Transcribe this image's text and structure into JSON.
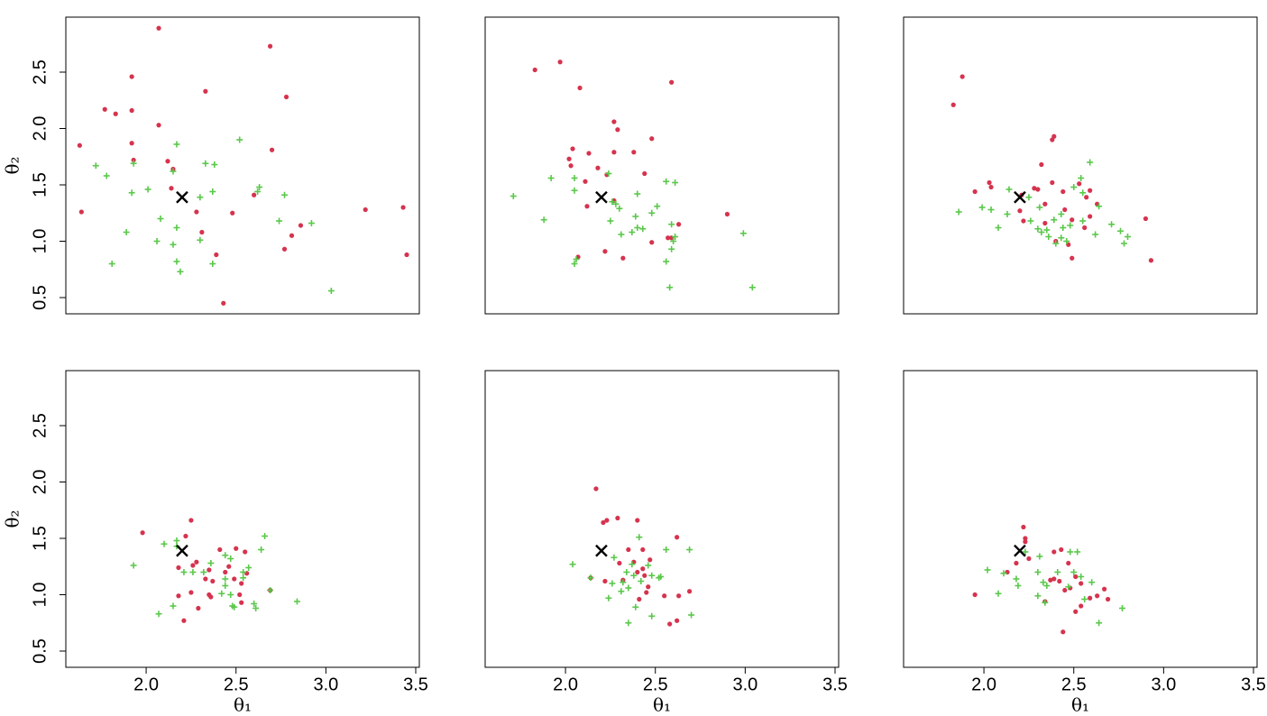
{
  "chart_data": [
    {
      "type": "scatter",
      "xlim": [
        1.553,
        3.52
      ],
      "ylim": [
        0.356,
        2.988
      ],
      "yticks": [
        0.5,
        {
          "value": 1,
          "label": "1.0"
        },
        1.5,
        {
          "value": 2,
          "label": "2.0"
        },
        2.5
      ],
      "ylabel": "θ₂",
      "reference": {
        "x": 2.2,
        "y": 1.39,
        "color": "#000000"
      },
      "series": [
        {
          "marker": "dot",
          "color": "#d6334e",
          "x": [
            2.07,
            2.69,
            1.92,
            2.33,
            2.78,
            1.77,
            1.92,
            1.83,
            2.07,
            1.63,
            1.92,
            2.7,
            1.93,
            2.12,
            2.15,
            2.14,
            2.6,
            1.64,
            2.28,
            2.48,
            3.22,
            3.43,
            2.81,
            2.86,
            2.31,
            2.39,
            2.77,
            3.45,
            2.43
          ],
          "values": [
            2.89,
            2.73,
            2.46,
            2.33,
            2.28,
            2.17,
            2.16,
            2.13,
            2.03,
            1.85,
            1.87,
            1.81,
            1.72,
            1.71,
            1.64,
            1.47,
            1.41,
            1.26,
            1.26,
            1.25,
            1.28,
            1.3,
            1.05,
            1.14,
            1.08,
            0.88,
            0.93,
            0.88,
            0.45
          ]
        },
        {
          "marker": "plus",
          "color": "#5ac84a",
          "x": [
            2.52,
            2.17,
            1.72,
            1.78,
            1.93,
            2.33,
            2.38,
            2.15,
            2.01,
            1.92,
            2.63,
            2.62,
            2.37,
            2.77,
            2.3,
            2.08,
            2.74,
            2.92,
            2.17,
            1.89,
            2.3,
            2.06,
            2.15,
            1.81,
            2.17,
            2.37,
            2.19,
            3.03
          ],
          "values": [
            1.9,
            1.86,
            1.67,
            1.58,
            1.69,
            1.69,
            1.68,
            1.62,
            1.46,
            1.43,
            1.48,
            1.44,
            1.44,
            1.41,
            1.39,
            1.2,
            1.18,
            1.16,
            1.12,
            1.08,
            1.01,
            1.0,
            0.97,
            0.8,
            0.82,
            0.8,
            0.73,
            0.56
          ]
        }
      ]
    },
    {
      "type": "scatter",
      "xlim": [
        1.553,
        3.52
      ],
      "ylim": [
        0.356,
        2.988
      ],
      "reference": {
        "x": 2.2,
        "y": 1.39,
        "color": "#000000"
      },
      "series": [
        {
          "marker": "dot",
          "color": "#d6334e",
          "x": [
            1.83,
            1.97,
            2.08,
            2.59,
            2.27,
            2.29,
            2.48,
            2.04,
            2.13,
            2.27,
            2.38,
            2.02,
            2.03,
            2.18,
            2.23,
            2.44,
            2.11,
            2.12,
            2.27,
            2.9,
            2.63,
            2.57,
            2.48,
            2.22,
            2.32,
            2.07,
            2.59
          ],
          "values": [
            2.52,
            2.59,
            2.36,
            2.41,
            2.06,
            1.99,
            1.91,
            1.82,
            1.78,
            1.79,
            1.79,
            1.73,
            1.67,
            1.65,
            1.59,
            1.6,
            1.53,
            1.31,
            1.36,
            1.24,
            1.15,
            1.03,
            0.99,
            0.91,
            0.85,
            0.86,
            1.03
          ]
        },
        {
          "marker": "plus",
          "color": "#5ac84a",
          "x": [
            1.71,
            1.92,
            1.88,
            2.05,
            2.05,
            2.24,
            2.26,
            2.28,
            2.4,
            2.56,
            2.61,
            2.51,
            2.3,
            2.25,
            2.39,
            2.48,
            2.4,
            2.43,
            2.31,
            2.37,
            2.59,
            2.61,
            2.6,
            2.59,
            2.56,
            2.06,
            2.58,
            3.04,
            2.99,
            2.05
          ],
          "values": [
            1.4,
            1.56,
            1.19,
            1.56,
            1.45,
            1.6,
            1.35,
            1.33,
            1.42,
            1.53,
            1.52,
            1.31,
            1.29,
            1.18,
            1.22,
            1.25,
            1.12,
            1.11,
            1.06,
            1.08,
            1.15,
            1.04,
            1.0,
            0.93,
            0.82,
            0.84,
            0.59,
            0.59,
            1.07,
            0.8
          ]
        }
      ]
    },
    {
      "type": "scatter",
      "xlim": [
        1.553,
        3.52
      ],
      "ylim": [
        0.356,
        2.988
      ],
      "reference": {
        "x": 2.2,
        "y": 1.39,
        "color": "#000000"
      },
      "series": [
        {
          "marker": "dot",
          "color": "#d6334e",
          "x": [
            1.83,
            1.88,
            2.39,
            2.38,
            2.32,
            2.38,
            1.95,
            2.03,
            2.04,
            2.28,
            2.3,
            2.21,
            2.53,
            2.59,
            2.44,
            2.57,
            2.63,
            2.2,
            2.34,
            2.45,
            2.22,
            2.34,
            2.49,
            2.56,
            2.59,
            2.4,
            2.47,
            2.49,
            2.9,
            2.93
          ],
          "values": [
            2.21,
            2.46,
            1.93,
            1.9,
            1.68,
            1.52,
            1.44,
            1.52,
            1.48,
            1.47,
            1.46,
            1.41,
            1.51,
            1.45,
            1.44,
            1.39,
            1.33,
            1.27,
            1.33,
            1.28,
            1.18,
            1.16,
            1.19,
            1.12,
            1.22,
            1.0,
            0.97,
            0.85,
            1.2,
            0.83
          ]
        },
        {
          "marker": "plus",
          "color": "#5ac84a",
          "x": [
            2.59,
            2.54,
            2.5,
            2.55,
            1.99,
            1.86,
            2.04,
            2.14,
            2.25,
            2.13,
            2.08,
            2.31,
            2.26,
            2.39,
            2.43,
            2.48,
            2.55,
            2.44,
            2.35,
            2.32,
            2.3,
            2.36,
            2.43,
            2.4,
            2.46,
            2.62,
            2.71,
            2.76,
            2.8,
            2.78,
            2.64
          ],
          "values": [
            1.7,
            1.56,
            1.48,
            1.43,
            1.3,
            1.26,
            1.28,
            1.46,
            1.39,
            1.24,
            1.12,
            1.3,
            1.18,
            1.19,
            1.24,
            1.14,
            1.18,
            1.12,
            1.1,
            1.08,
            1.11,
            1.04,
            1.03,
            0.98,
            1.0,
            1.06,
            1.15,
            1.09,
            1.04,
            0.98,
            1.31
          ]
        }
      ]
    },
    {
      "type": "scatter",
      "xlim": [
        1.553,
        3.52
      ],
      "ylim": [
        0.356,
        2.988
      ],
      "xticks": [
        {
          "value": 2,
          "label": "2.0"
        },
        2.5,
        {
          "value": 3,
          "label": "3.0"
        },
        3.5
      ],
      "xlabel": "θ₁",
      "yticks": [
        0.5,
        {
          "value": 1,
          "label": "1.0"
        },
        1.5,
        {
          "value": 2,
          "label": "2.0"
        },
        2.5
      ],
      "ylabel": "θ₂",
      "reference": {
        "x": 2.2,
        "y": 1.39,
        "color": "#000000"
      },
      "series": [
        {
          "marker": "dot",
          "color": "#d6334e",
          "x": [
            1.98,
            2.25,
            2.22,
            2.28,
            2.26,
            2.18,
            2.41,
            2.5,
            2.55,
            2.35,
            2.46,
            2.44,
            2.33,
            2.37,
            2.49,
            2.56,
            2.53,
            2.18,
            2.25,
            2.35,
            2.36,
            2.52,
            2.53,
            2.29,
            2.69,
            2.21
          ],
          "values": [
            1.55,
            1.66,
            1.52,
            1.29,
            1.26,
            1.24,
            1.4,
            1.41,
            1.38,
            1.22,
            1.25,
            1.2,
            1.14,
            1.12,
            1.14,
            1.19,
            1.1,
            0.99,
            1.02,
            1.0,
            0.98,
            1.0,
            0.93,
            0.88,
            1.04,
            0.77
          ]
        },
        {
          "marker": "plus",
          "color": "#5ac84a",
          "x": [
            1.93,
            2.1,
            2.17,
            2.17,
            2.66,
            2.64,
            2.44,
            2.47,
            2.36,
            2.21,
            2.26,
            2.32,
            2.44,
            2.57,
            2.54,
            2.54,
            2.44,
            2.42,
            2.47,
            2.48,
            2.49,
            2.6,
            2.61,
            2.15,
            2.07,
            2.84,
            2.69
          ],
          "values": [
            1.26,
            1.45,
            1.48,
            1.43,
            1.52,
            1.4,
            1.35,
            1.32,
            1.28,
            1.2,
            1.2,
            1.2,
            1.14,
            1.24,
            1.2,
            1.15,
            1.08,
            1.01,
            1.0,
            0.9,
            0.89,
            0.92,
            0.88,
            0.9,
            0.83,
            0.94,
            1.04
          ]
        }
      ]
    },
    {
      "type": "scatter",
      "xlim": [
        1.553,
        3.52
      ],
      "ylim": [
        0.356,
        2.988
      ],
      "xticks": [
        {
          "value": 2,
          "label": "2.0"
        },
        2.5,
        {
          "value": 3,
          "label": "3.0"
        },
        3.5
      ],
      "xlabel": "θ₁",
      "reference": {
        "x": 2.2,
        "y": 1.39,
        "color": "#000000"
      },
      "series": [
        {
          "marker": "dot",
          "color": "#d6334e",
          "x": [
            2.17,
            2.21,
            2.23,
            2.29,
            2.4,
            2.62,
            2.35,
            2.43,
            2.38,
            2.3,
            2.47,
            2.4,
            2.43,
            2.44,
            2.32,
            2.22,
            2.46,
            2.45,
            2.41,
            2.55,
            2.63,
            2.69,
            2.14,
            2.58,
            2.62
          ],
          "values": [
            1.94,
            1.64,
            1.66,
            1.68,
            1.66,
            1.51,
            1.4,
            1.4,
            1.29,
            1.28,
            1.31,
            1.2,
            1.23,
            1.17,
            1.13,
            1.12,
            1.07,
            1.02,
            0.96,
            0.99,
            0.99,
            1.03,
            1.15,
            0.74,
            0.77
          ]
        },
        {
          "marker": "plus",
          "color": "#5ac84a",
          "x": [
            2.04,
            2.14,
            2.27,
            2.41,
            2.56,
            2.69,
            2.37,
            2.34,
            2.38,
            2.48,
            2.52,
            2.53,
            2.42,
            2.32,
            2.35,
            2.26,
            2.24,
            2.31,
            2.39,
            2.48,
            2.35,
            2.7,
            2.46
          ],
          "values": [
            1.27,
            1.15,
            1.33,
            1.51,
            1.4,
            1.4,
            1.27,
            1.2,
            1.17,
            1.17,
            1.15,
            1.16,
            1.12,
            1.11,
            1.06,
            1.1,
            0.97,
            1.03,
            0.89,
            0.81,
            0.75,
            0.82,
            1.26
          ]
        }
      ]
    },
    {
      "type": "scatter",
      "xlim": [
        1.553,
        3.52
      ],
      "ylim": [
        0.356,
        2.988
      ],
      "xticks": [
        {
          "value": 2,
          "label": "2.0"
        },
        2.5,
        {
          "value": 3,
          "label": "3.0"
        },
        3.5
      ],
      "xlabel": "θ₁",
      "reference": {
        "x": 2.2,
        "y": 1.39,
        "color": "#000000"
      },
      "series": [
        {
          "marker": "dot",
          "color": "#d6334e",
          "x": [
            1.95,
            2.13,
            2.22,
            2.23,
            2.25,
            2.18,
            2.39,
            2.43,
            2.39,
            2.42,
            2.37,
            2.47,
            2.51,
            2.54,
            2.48,
            2.45,
            2.59,
            2.63,
            2.67,
            2.69,
            2.51,
            2.54,
            2.44,
            2.23,
            2.34
          ],
          "values": [
            1.0,
            1.2,
            1.6,
            1.5,
            1.32,
            1.28,
            1.38,
            1.4,
            1.14,
            1.12,
            1.13,
            1.28,
            1.16,
            1.1,
            1.06,
            1.04,
            0.97,
            0.99,
            1.05,
            0.96,
            0.85,
            0.9,
            0.67,
            1.47,
            0.94
          ]
        },
        {
          "marker": "plus",
          "color": "#5ac84a",
          "x": [
            2.02,
            2.08,
            2.11,
            2.18,
            2.23,
            2.31,
            2.52,
            2.48,
            2.3,
            2.33,
            2.35,
            2.3,
            2.34,
            2.41,
            2.5,
            2.54,
            2.6,
            2.56,
            2.64,
            2.77,
            2.19,
            2.47
          ],
          "values": [
            1.22,
            1.01,
            1.19,
            1.14,
            1.38,
            1.34,
            1.38,
            1.38,
            1.2,
            1.11,
            1.08,
            0.99,
            0.93,
            1.2,
            1.2,
            1.16,
            1.11,
            0.96,
            0.75,
            0.88,
            1.08,
            1.07
          ]
        }
      ]
    }
  ]
}
